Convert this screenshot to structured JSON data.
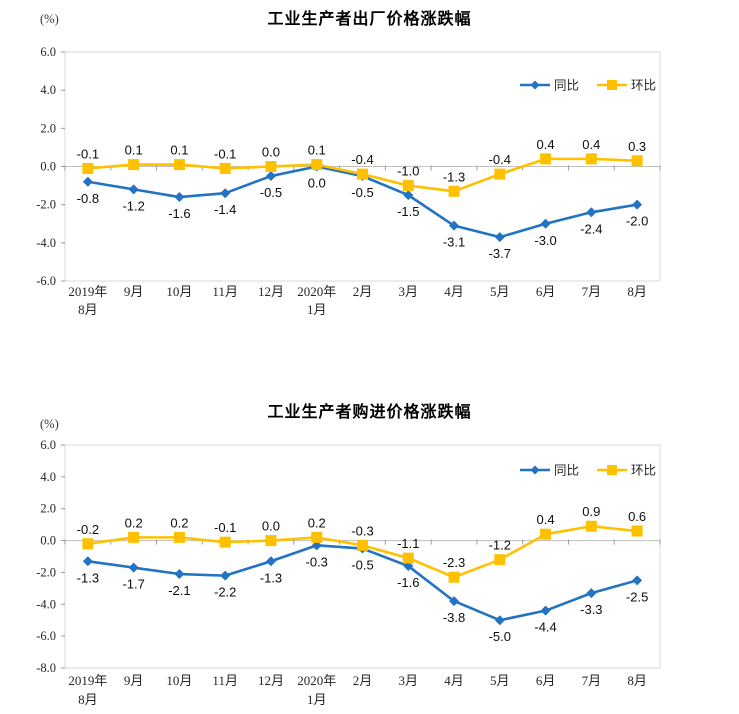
{
  "chart_data": [
    {
      "type": "line",
      "title": "工业生产者出厂价格涨跌幅",
      "unit_label": "(%)",
      "categories": [
        "2019年8月",
        "9月",
        "10月",
        "11月",
        "12月",
        "2020年1月",
        "2月",
        "3月",
        "4月",
        "5月",
        "6月",
        "7月",
        "8月"
      ],
      "tick_lines": [
        [
          "2019年",
          "8月"
        ],
        [
          "9月"
        ],
        [
          "10月"
        ],
        [
          "11月"
        ],
        [
          "12月"
        ],
        [
          "2020年",
          "1月"
        ],
        [
          "2月"
        ],
        [
          "3月"
        ],
        [
          "4月"
        ],
        [
          "5月"
        ],
        [
          "6月"
        ],
        [
          "7月"
        ],
        [
          "8月"
        ]
      ],
      "ylim": [
        -6,
        6
      ],
      "ytick_step": 2,
      "yticks": [
        "6.0",
        "4.0",
        "2.0",
        "0.0",
        "-2.0",
        "-4.0",
        "-6.0"
      ],
      "grid": false,
      "legend_position": "top-right-inside",
      "legend": [
        "同比",
        "环比"
      ],
      "series": [
        {
          "name": "同比",
          "color": "#2273c3",
          "marker": "diamond",
          "label_position": "below",
          "values": [
            -0.8,
            -1.2,
            -1.6,
            -1.4,
            -0.5,
            0.0,
            -0.5,
            -1.5,
            -3.1,
            -3.7,
            -3.0,
            -2.4,
            -2.0
          ]
        },
        {
          "name": "环比",
          "color": "#ffc000",
          "marker": "square",
          "label_position": "above",
          "values": [
            -0.1,
            0.1,
            0.1,
            -0.1,
            0.0,
            0.1,
            -0.4,
            -1.0,
            -1.3,
            -0.4,
            0.4,
            0.4,
            0.3
          ]
        }
      ]
    },
    {
      "type": "line",
      "title": "工业生产者购进价格涨跌幅",
      "unit_label": "(%)",
      "categories": [
        "2019年8月",
        "9月",
        "10月",
        "11月",
        "12月",
        "2020年1月",
        "2月",
        "3月",
        "4月",
        "5月",
        "6月",
        "7月",
        "8月"
      ],
      "tick_lines": [
        [
          "2019年",
          "8月"
        ],
        [
          "9月"
        ],
        [
          "10月"
        ],
        [
          "11月"
        ],
        [
          "12月"
        ],
        [
          "2020年",
          "1月"
        ],
        [
          "2月"
        ],
        [
          "3月"
        ],
        [
          "4月"
        ],
        [
          "5月"
        ],
        [
          "6月"
        ],
        [
          "7月"
        ],
        [
          "8月"
        ]
      ],
      "ylim": [
        -8,
        6
      ],
      "ytick_step": 2,
      "yticks": [
        "6.0",
        "4.0",
        "2.0",
        "0.0",
        "-2.0",
        "-4.0",
        "-6.0",
        "-8.0"
      ],
      "grid": false,
      "legend_position": "top-right-inside",
      "legend": [
        "同比",
        "环比"
      ],
      "series": [
        {
          "name": "同比",
          "color": "#2273c3",
          "marker": "diamond",
          "label_position": "below",
          "values": [
            -1.3,
            -1.7,
            -2.1,
            -2.2,
            -1.3,
            -0.3,
            -0.5,
            -1.6,
            -3.8,
            -5.0,
            -4.4,
            -3.3,
            -2.5
          ]
        },
        {
          "name": "环比",
          "color": "#ffc000",
          "marker": "square",
          "label_position": "above",
          "values": [
            -0.2,
            0.2,
            0.2,
            -0.1,
            0.0,
            0.2,
            -0.3,
            -1.1,
            -2.3,
            -1.2,
            0.4,
            0.9,
            0.6
          ]
        }
      ]
    }
  ],
  "colors": {
    "yoy_line": "#2273c3",
    "mom_line": "#ffc000",
    "plot_border": "#d9d9d9",
    "zero_axis": "#bfbfbf",
    "tick_mark": "#9b9b9b"
  }
}
